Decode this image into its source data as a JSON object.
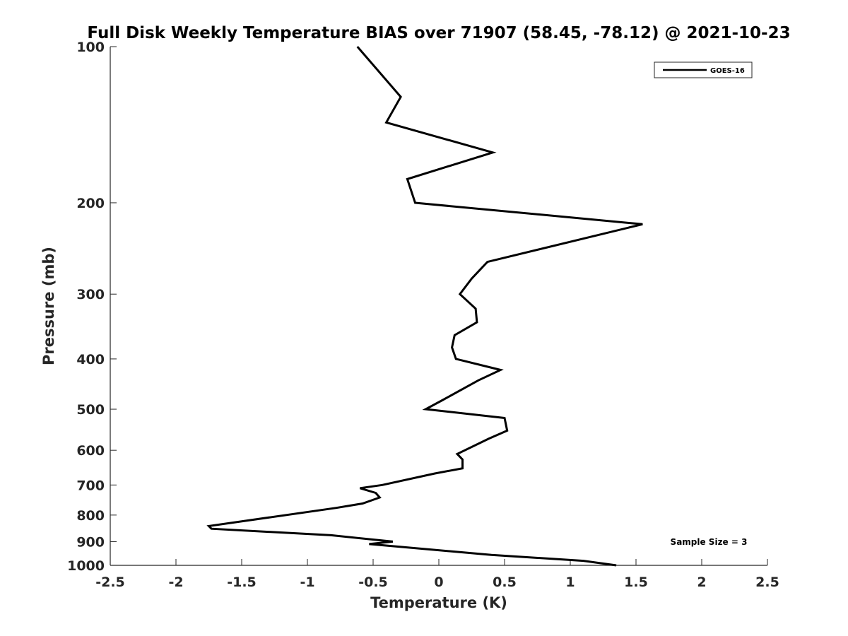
{
  "chart_data": {
    "type": "line",
    "title": "Full Disk Weekly Temperature BIAS over 71907 (58.45, -78.12) @ 2021-10-23",
    "xlabel": "Temperature (K)",
    "ylabel": "Pressure (mb)",
    "xlim": [
      -2.5,
      2.5
    ],
    "ylim": [
      100,
      1000
    ],
    "y_scale": "log",
    "y_reversed": true,
    "x_ticks": [
      -2.5,
      -2,
      -1.5,
      -1,
      -0.5,
      0,
      0.5,
      1,
      1.5,
      2,
      2.5
    ],
    "x_tick_labels": [
      "-2.5",
      "-2",
      "-1.5",
      "-1",
      "-0.5",
      "0",
      "0.5",
      "1",
      "1.5",
      "2",
      "2.5"
    ],
    "y_ticks": [
      100,
      200,
      300,
      400,
      500,
      600,
      700,
      800,
      900,
      1000
    ],
    "y_tick_labels": [
      "100",
      "200",
      "300",
      "400",
      "500",
      "600",
      "700",
      "800",
      "900",
      "1000"
    ],
    "grid": false,
    "legend_position": "top-right",
    "series": [
      {
        "name": "GOES-16",
        "color": "#000000",
        "points": [
          [
            -0.62,
            100
          ],
          [
            -0.29,
            125
          ],
          [
            -0.4,
            140
          ],
          [
            0.41,
            160
          ],
          [
            -0.24,
            180
          ],
          [
            -0.18,
            200
          ],
          [
            1.55,
            220
          ],
          [
            0.37,
            260
          ],
          [
            0.25,
            280
          ],
          [
            0.16,
            300
          ],
          [
            0.28,
            320
          ],
          [
            0.29,
            340
          ],
          [
            0.12,
            360
          ],
          [
            0.1,
            380
          ],
          [
            0.13,
            400
          ],
          [
            0.47,
            420
          ],
          [
            0.3,
            440
          ],
          [
            0.03,
            480
          ],
          [
            -0.1,
            500
          ],
          [
            0.5,
            520
          ],
          [
            0.52,
            550
          ],
          [
            0.38,
            570
          ],
          [
            0.14,
            610
          ],
          [
            0.18,
            625
          ],
          [
            0.18,
            650
          ],
          [
            -0.03,
            665
          ],
          [
            -0.43,
            700
          ],
          [
            -0.6,
            710
          ],
          [
            -0.48,
            725
          ],
          [
            -0.45,
            740
          ],
          [
            -0.58,
            760
          ],
          [
            -0.78,
            775
          ],
          [
            -1.75,
            840
          ],
          [
            -1.73,
            850
          ],
          [
            -0.82,
            875
          ],
          [
            -0.35,
            900
          ],
          [
            -0.53,
            910
          ],
          [
            0.4,
            955
          ],
          [
            1.1,
            980
          ],
          [
            1.35,
            1000
          ]
        ]
      }
    ],
    "annotation": "Sample Size = 3"
  }
}
